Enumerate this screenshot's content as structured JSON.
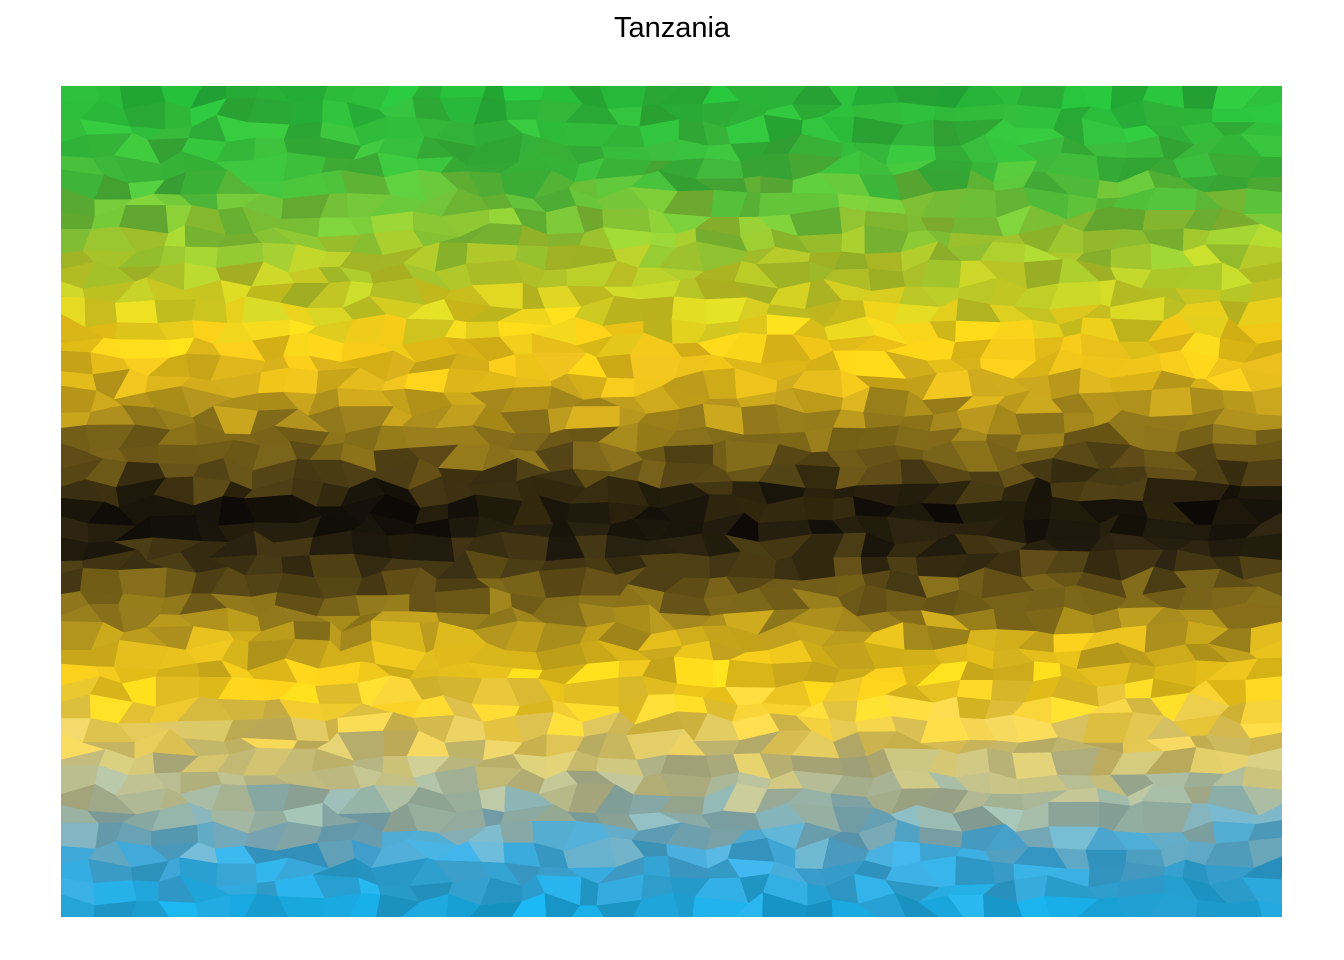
{
  "title": "Tanzania",
  "palette": {
    "green": "#1fb53a",
    "green_light": "#7fc234",
    "yellow_green": "#c9ca22",
    "yellow": "#fcd116",
    "gold": "#e0b41c",
    "olive": "#7a6418",
    "dark_brown": "#3a2e12",
    "black": "#000000",
    "sand": "#dcc45a",
    "grey_blue": "#9ab0b0",
    "blue": "#00a3dd",
    "blue_light": "#5aa8d0"
  }
}
